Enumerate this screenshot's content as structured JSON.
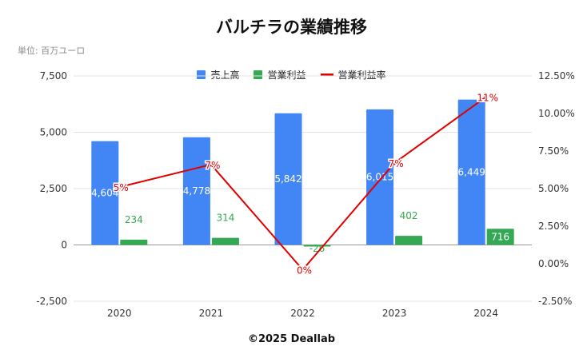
{
  "title": "バルチラの業績推移",
  "unit_note": "単位: 百万ユーロ",
  "credit": "©2025 Deallab",
  "colors": {
    "revenue": "#4285f4",
    "operating_profit": "#34a853",
    "margin": "#e00000",
    "grid": "#e3e3e3"
  },
  "chart_data": {
    "type": "bar",
    "title": "バルチラの業績推移",
    "categories": [
      "2020",
      "2021",
      "2022",
      "2023",
      "2024"
    ],
    "series": [
      {
        "name": "売上高",
        "type": "bar",
        "axis": "left",
        "values": [
          4604,
          4778,
          5842,
          6015,
          6449
        ],
        "labels": [
          "4,604",
          "4,778",
          "5,842",
          "6,015",
          "6,449"
        ]
      },
      {
        "name": "営業利益",
        "type": "bar",
        "axis": "left",
        "values": [
          234,
          314,
          -26,
          402,
          716
        ],
        "labels": [
          "234",
          "314",
          "-26",
          "402",
          "716"
        ]
      },
      {
        "name": "営業利益率",
        "type": "line",
        "axis": "right",
        "values": [
          5.1,
          6.6,
          -0.4,
          6.7,
          11.1
        ],
        "labels": [
          "5%",
          "7%",
          "0%",
          "7%",
          "11%"
        ]
      }
    ],
    "y_left": {
      "min": -2500,
      "max": 7500,
      "ticks": [
        -2500,
        0,
        2500,
        5000,
        7500
      ],
      "tick_labels": [
        "-2,500",
        "0",
        "2,500",
        "5,000",
        "7,500"
      ]
    },
    "y_right": {
      "min": -2.5,
      "max": 12.5,
      "ticks": [
        -2.5,
        0,
        2.5,
        5,
        7.5,
        10,
        12.5
      ],
      "tick_labels": [
        "-2.50%",
        "0.00%",
        "2.50%",
        "5.00%",
        "7.50%",
        "10.00%",
        "12.50%"
      ]
    },
    "legend": "top-center",
    "grid": true
  }
}
